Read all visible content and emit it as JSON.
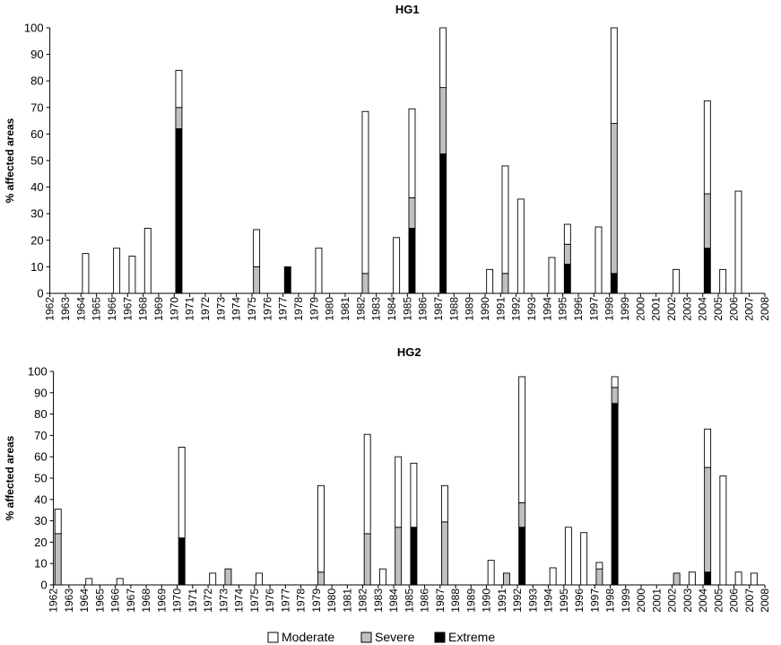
{
  "chart_data": [
    {
      "type": "bar",
      "stacked": true,
      "title": "HG1",
      "ylabel": "% affected areas",
      "xlabel": "",
      "ylim": [
        0,
        100
      ],
      "yticks": [
        0,
        10,
        20,
        30,
        40,
        50,
        60,
        70,
        80,
        90,
        100
      ],
      "categories": [
        "1962",
        "1963",
        "1964",
        "1965",
        "1966",
        "1967",
        "1968",
        "1969",
        "1970",
        "1971",
        "1972",
        "1973",
        "1974",
        "1975",
        "1976",
        "1977",
        "1978",
        "1979",
        "1980",
        "1981",
        "1982",
        "1983",
        "1984",
        "1985",
        "1986",
        "1987",
        "1988",
        "1989",
        "1990",
        "1991",
        "1992",
        "1993",
        "1994",
        "1995",
        "1996",
        "1997",
        "1998",
        "1999",
        "2000",
        "2001",
        "2002",
        "2003",
        "2004",
        "2005",
        "2006",
        "2007",
        "2008"
      ],
      "series": [
        {
          "name": "Extreme",
          "color": "#000000",
          "values": [
            0,
            0,
            0,
            0,
            0,
            0,
            0,
            0,
            62,
            0,
            0,
            0,
            0,
            0,
            0,
            10,
            0,
            0,
            0,
            0,
            0,
            0,
            0,
            24.5,
            0,
            52.5,
            0,
            0,
            0,
            0,
            0,
            0,
            0,
            11,
            0,
            0,
            7.5,
            0,
            0,
            0,
            0,
            0,
            17,
            0,
            0,
            0,
            0
          ]
        },
        {
          "name": "Severe",
          "color": "#c0c0c0",
          "values": [
            0,
            0,
            0,
            0,
            0,
            0,
            0,
            0,
            8,
            0,
            0,
            0,
            0,
            10,
            0,
            0,
            0,
            0,
            0,
            0,
            7.5,
            0,
            0,
            11.5,
            0,
            25,
            0,
            0,
            0,
            7.5,
            0,
            0,
            0,
            7.5,
            0,
            0,
            56.5,
            0,
            0,
            0,
            0,
            0,
            20.5,
            0,
            0,
            0,
            0
          ]
        },
        {
          "name": "Moderate",
          "color": "#ffffff",
          "values": [
            0,
            0,
            15,
            0,
            17,
            14,
            24.5,
            0,
            14,
            0,
            0,
            0,
            0,
            14,
            0,
            0,
            0,
            17,
            0,
            0,
            61,
            0,
            21,
            33.5,
            0,
            22.5,
            0,
            0,
            9,
            40.5,
            35.5,
            0,
            13.5,
            7.5,
            0,
            25,
            36,
            0,
            0,
            0,
            9,
            0,
            35,
            9,
            38.5,
            0,
            0
          ]
        }
      ]
    },
    {
      "type": "bar",
      "stacked": true,
      "title": "HG2",
      "ylabel": "% affected areas",
      "xlabel": "",
      "ylim": [
        0,
        100
      ],
      "yticks": [
        0,
        10,
        20,
        30,
        40,
        50,
        60,
        70,
        80,
        90,
        100
      ],
      "categories": [
        "1962",
        "1963",
        "1964",
        "1965",
        "1966",
        "1967",
        "1968",
        "1969",
        "1970",
        "1971",
        "1972",
        "1973",
        "1974",
        "1975",
        "1976",
        "1977",
        "1978",
        "1979",
        "1980",
        "1981",
        "1982",
        "1983",
        "1984",
        "1985",
        "1986",
        "1987",
        "1988",
        "1989",
        "1990",
        "1991",
        "1992",
        "1993",
        "1994",
        "1995",
        "1996",
        "1997",
        "1998",
        "1999",
        "2000",
        "2001",
        "2002",
        "2003",
        "2004",
        "2005",
        "2006",
        "2007",
        "2008"
      ],
      "series": [
        {
          "name": "Extreme",
          "color": "#000000",
          "values": [
            0,
            0,
            0,
            0,
            0,
            0,
            0,
            0,
            22,
            0,
            0,
            0,
            0,
            0,
            0,
            0,
            0,
            0,
            0,
            0,
            0,
            0,
            0,
            27,
            0,
            0,
            0,
            0,
            0,
            0,
            27,
            0,
            0,
            0,
            0,
            0,
            85,
            0,
            0,
            0,
            0,
            0,
            6,
            0,
            0,
            0,
            0
          ]
        },
        {
          "name": "Severe",
          "color": "#c0c0c0",
          "values": [
            24,
            0,
            0,
            0,
            0,
            0,
            0,
            0,
            0,
            0,
            0,
            7.5,
            0,
            0,
            0,
            0,
            0,
            6,
            0,
            0,
            24,
            0,
            27,
            0,
            0,
            29.5,
            0,
            0,
            0,
            5.5,
            11.5,
            0,
            0,
            0,
            0,
            7.5,
            7.5,
            0,
            0,
            0,
            5.5,
            0,
            49,
            0,
            0,
            0,
            0
          ]
        },
        {
          "name": "Moderate",
          "color": "#ffffff",
          "values": [
            11.5,
            0,
            3,
            0,
            3,
            0,
            0,
            0,
            42.5,
            0,
            5.5,
            0,
            0,
            5.5,
            0,
            0,
            0,
            40.5,
            0,
            0,
            46.5,
            7.5,
            33,
            30,
            0,
            17,
            0,
            0,
            11.5,
            0,
            59,
            0,
            8,
            27,
            24.5,
            3,
            5,
            0,
            0,
            0,
            0,
            6,
            18,
            51,
            6,
            5.5,
            0
          ]
        }
      ]
    }
  ],
  "legend": {
    "position": "bottom-center",
    "items": [
      {
        "label": "Moderate",
        "color": "#ffffff"
      },
      {
        "label": "Severe",
        "color": "#c0c0c0"
      },
      {
        "label": "Extreme",
        "color": "#000000"
      }
    ]
  }
}
